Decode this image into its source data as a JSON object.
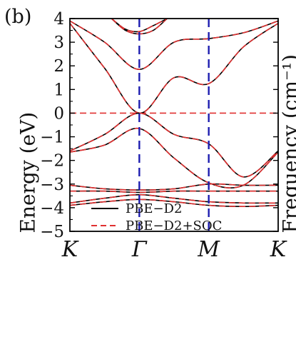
{
  "panel_label": "(b)",
  "right_label_partial": "Frequency (cm⁻¹)",
  "chart_data": {
    "type": "line",
    "title": "",
    "ylabel": "Energy (eV)",
    "xlabel": "",
    "ylim": [
      -5,
      4
    ],
    "yticks": [
      4,
      3,
      2,
      1,
      0,
      -1,
      -2,
      -3,
      -4,
      -5
    ],
    "ytick_labels": [
      "4",
      "3",
      "2",
      "1",
      "0",
      "−1",
      "−2",
      "−3",
      "−4",
      "−5"
    ],
    "xticks": [
      0,
      1,
      2,
      3
    ],
    "xtick_labels": [
      "K",
      "Γ",
      "M",
      "K"
    ],
    "vlines": [
      1,
      2
    ],
    "hline": 0,
    "legend": {
      "placement": "bottom-left",
      "entries": [
        {
          "label": "PBE−D2",
          "style": "solid",
          "color": "#000000"
        },
        {
          "label": "PBE−D2+SOC",
          "style": "dashed",
          "color": "#e03030"
        }
      ]
    },
    "series": [
      {
        "x": [
          0,
          0.5,
          1,
          1.5,
          2,
          2.5,
          3
        ],
        "y": [
          3.8,
          1.9,
          0.0,
          1.5,
          1.25,
          2.8,
          3.8
        ]
      },
      {
        "x": [
          0,
          0.5,
          1,
          1.5,
          2,
          2.5,
          3
        ],
        "y": [
          3.9,
          3.0,
          1.85,
          3.0,
          3.15,
          3.4,
          3.9
        ]
      },
      {
        "x": [
          0.6,
          0.8,
          1,
          1.2,
          1.4
        ],
        "y": [
          4.0,
          3.5,
          3.35,
          3.5,
          4.0
        ]
      },
      {
        "x": [
          0.6,
          0.8,
          1,
          1.2,
          1.4
        ],
        "y": [
          4.0,
          3.55,
          3.45,
          3.7,
          4.0
        ]
      },
      {
        "x": [
          0,
          0.5,
          1,
          1.5,
          2,
          2.5,
          3
        ],
        "y": [
          -1.6,
          -0.9,
          0.0,
          -0.9,
          -1.3,
          -2.7,
          -1.6
        ]
      },
      {
        "x": [
          0,
          0.5,
          1,
          1.5,
          2,
          2.5,
          3
        ],
        "y": [
          -1.65,
          -1.35,
          -0.65,
          -1.9,
          -2.95,
          -3.05,
          -1.65
        ]
      },
      {
        "x": [
          0,
          0.5,
          1,
          1.5,
          2,
          2.5,
          3
        ],
        "y": [
          -3.05,
          -3.2,
          -3.25,
          -3.2,
          -3.0,
          -3.05,
          -3.05
        ]
      },
      {
        "x": [
          0,
          0.5,
          1,
          1.5,
          2,
          2.5,
          3
        ],
        "y": [
          -3.3,
          -3.3,
          -3.35,
          -3.3,
          -3.3,
          -3.3,
          -3.3
        ]
      },
      {
        "x": [
          0,
          0.5,
          1,
          1.5,
          2,
          2.5,
          3
        ],
        "y": [
          -3.8,
          -3.6,
          -3.45,
          -3.6,
          -3.75,
          -3.8,
          -3.8
        ]
      },
      {
        "x": [
          0,
          0.5,
          1,
          1.5,
          2,
          2.5,
          3
        ],
        "y": [
          -3.9,
          -3.75,
          -3.65,
          -3.75,
          -3.9,
          -3.95,
          -3.9
        ]
      }
    ]
  }
}
